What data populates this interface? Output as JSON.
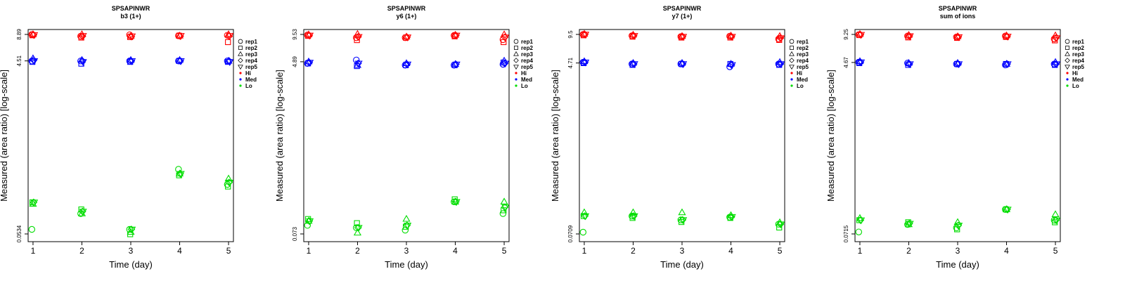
{
  "figure": {
    "xlabel": "Time (day)",
    "ylabel": "Measured (area ratio) [log-scale]"
  },
  "legend": {
    "replicates": [
      {
        "name": "rep1",
        "marker": "circle"
      },
      {
        "name": "rep2",
        "marker": "square"
      },
      {
        "name": "rep3",
        "marker": "triangle-up"
      },
      {
        "name": "rep4",
        "marker": "diamond"
      },
      {
        "name": "rep5",
        "marker": "triangle-down"
      }
    ],
    "levels": [
      {
        "name": "Hi",
        "color": "#ff0000"
      },
      {
        "name": "Med",
        "color": "#0000ff"
      },
      {
        "name": "Lo",
        "color": "#00dd00"
      }
    ]
  },
  "chart_data": [
    {
      "type": "scatter",
      "title": "SPSAPINWR",
      "subtitle": "b3 (1+)",
      "y_scale": "log",
      "ylim": [
        0.0534,
        8.89
      ],
      "yticks": [
        "0.0534",
        "4.51",
        "8.89"
      ],
      "x": [
        1,
        2,
        3,
        4,
        5
      ],
      "series": [
        {
          "level": "Hi",
          "values": [
            [
              8.9,
              8.5,
              8.8,
              8.6,
              8.7
            ],
            [
              8.7,
              8.2,
              8.3,
              8.6,
              7.3
            ],
            [
              8.9,
              8.9,
              8.5,
              8.6,
              8.9
            ],
            [
              8.8,
              8.5,
              8.4,
              8.5,
              8.5
            ],
            [
              8.8,
              8.6,
              8.5,
              8.6,
              8.6
            ]
          ]
        },
        {
          "level": "Med",
          "values": [
            [
              4.5,
              4.5,
              4.5,
              4.5,
              4.5
            ],
            [
              4.4,
              4.2,
              4.4,
              4.5,
              4.4
            ],
            [
              4.8,
              4.6,
              4.6,
              4.6,
              4.5
            ],
            [
              4.6,
              4.5,
              4.5,
              4.5,
              4.5
            ],
            [
              4.5,
              4.4,
              4.5,
              4.5,
              4.4
            ]
          ]
        },
        {
          "level": "Lo",
          "values": [
            [
              0.06,
              0.09,
              0.06,
              0.28,
              0.19
            ],
            [
              0.12,
              0.1,
              0.053,
              0.24,
              0.18
            ],
            [
              0.115,
              0.09,
              0.056,
              0.25,
              0.22
            ],
            [
              0.12,
              0.095,
              0.06,
              0.25,
              0.2
            ],
            [
              0.12,
              0.095,
              0.06,
              0.25,
              0.2
            ]
          ]
        }
      ]
    },
    {
      "type": "scatter",
      "title": "SPSAPINWR",
      "subtitle": "y6 (1+)",
      "y_scale": "log",
      "ylim": [
        0.073,
        9.53
      ],
      "yticks": [
        "0.073",
        "4.89",
        "9.53"
      ],
      "x": [
        1,
        2,
        3,
        4,
        5
      ],
      "series": [
        {
          "level": "Hi",
          "values": [
            [
              9.4,
              8.8,
              8.8,
              9.3,
              8.4
            ],
            [
              9.2,
              8.3,
              8.8,
              9.1,
              7.9
            ],
            [
              9.5,
              9.6,
              9.0,
              9.4,
              9.5
            ],
            [
              9.3,
              9.0,
              8.9,
              9.3,
              8.9
            ],
            [
              9.3,
              9.0,
              8.9,
              9.3,
              8.9
            ]
          ]
        },
        {
          "level": "Med",
          "values": [
            [
              4.7,
              5.1,
              4.5,
              4.5,
              4.6
            ],
            [
              4.7,
              4.4,
              4.5,
              4.5,
              4.8
            ],
            [
              4.9,
              4.5,
              4.7,
              4.6,
              5.0
            ],
            [
              4.8,
              4.7,
              4.6,
              4.6,
              4.7
            ],
            [
              4.8,
              4.7,
              4.6,
              4.6,
              4.7
            ]
          ]
        },
        {
          "level": "Lo",
          "values": [
            [
              0.09,
              0.085,
              0.08,
              0.16,
              0.12
            ],
            [
              0.105,
              0.095,
              0.087,
              0.17,
              0.13
            ],
            [
              0.1,
              0.075,
              0.105,
              0.16,
              0.16
            ],
            [
              0.1,
              0.085,
              0.09,
              0.16,
              0.14
            ],
            [
              0.1,
              0.085,
              0.09,
              0.16,
              0.14
            ]
          ]
        }
      ]
    },
    {
      "type": "scatter",
      "title": "SPSAPINWR",
      "subtitle": "y7 (1+)",
      "y_scale": "log",
      "ylim": [
        0.0709,
        9.5
      ],
      "yticks": [
        "0.0709",
        "4.71",
        "9.5"
      ],
      "x": [
        1,
        2,
        3,
        4,
        5
      ],
      "series": [
        {
          "level": "Hi",
          "values": [
            [
              9.5,
              9.2,
              9.0,
              9.1,
              8.5
            ],
            [
              9.3,
              9.0,
              8.8,
              8.8,
              8.3
            ],
            [
              9.6,
              9.4,
              9.1,
              9.2,
              9.1
            ],
            [
              9.5,
              9.2,
              9.0,
              9.0,
              8.7
            ],
            [
              9.5,
              9.2,
              9.0,
              9.0,
              8.7
            ]
          ]
        },
        {
          "level": "Med",
          "values": [
            [
              4.8,
              4.6,
              4.6,
              4.3,
              4.6
            ],
            [
              4.7,
              4.5,
              4.6,
              4.6,
              4.5
            ],
            [
              4.9,
              4.7,
              4.7,
              4.6,
              4.8
            ],
            [
              4.8,
              4.6,
              4.6,
              4.5,
              4.6
            ],
            [
              4.8,
              4.6,
              4.6,
              4.5,
              4.6
            ]
          ]
        },
        {
          "level": "Lo",
          "values": [
            [
              0.074,
              0.11,
              0.1,
              0.107,
              0.09
            ],
            [
              0.11,
              0.105,
              0.095,
              0.105,
              0.083
            ],
            [
              0.12,
              0.12,
              0.12,
              0.112,
              0.094
            ],
            [
              0.11,
              0.11,
              0.1,
              0.108,
              0.09
            ],
            [
              0.11,
              0.11,
              0.1,
              0.108,
              0.09
            ]
          ]
        }
      ]
    },
    {
      "type": "scatter",
      "title": "SPSAPINWR",
      "subtitle": "sum of ions",
      "y_scale": "log",
      "ylim": [
        0.0715,
        9.25
      ],
      "yticks": [
        "0.0715",
        "4.67",
        "9.25"
      ],
      "x": [
        1,
        2,
        3,
        4,
        5
      ],
      "series": [
        {
          "level": "Hi",
          "values": [
            [
              9.2,
              8.9,
              8.7,
              8.9,
              8.3
            ],
            [
              9.1,
              8.6,
              8.5,
              8.7,
              8.0
            ],
            [
              9.3,
              9.1,
              8.8,
              9.0,
              9.0
            ],
            [
              9.2,
              8.9,
              8.7,
              8.8,
              8.5
            ],
            [
              9.2,
              8.9,
              8.7,
              8.8,
              8.5
            ]
          ]
        },
        {
          "level": "Med",
          "values": [
            [
              4.7,
              4.6,
              4.5,
              4.4,
              4.5
            ],
            [
              4.6,
              4.4,
              4.5,
              4.5,
              4.4
            ],
            [
              4.8,
              4.6,
              4.6,
              4.5,
              4.7
            ],
            [
              4.7,
              4.5,
              4.5,
              4.5,
              4.5
            ],
            [
              4.7,
              4.5,
              4.5,
              4.5,
              4.5
            ]
          ]
        },
        {
          "level": "Lo",
          "values": [
            [
              0.075,
              0.09,
              0.083,
              0.13,
              0.1
            ],
            [
              0.1,
              0.095,
              0.08,
              0.13,
              0.095
            ],
            [
              0.105,
              0.09,
              0.095,
              0.13,
              0.115
            ],
            [
              0.1,
              0.092,
              0.088,
              0.13,
              0.1
            ],
            [
              0.1,
              0.092,
              0.088,
              0.13,
              0.1
            ]
          ]
        }
      ]
    }
  ]
}
